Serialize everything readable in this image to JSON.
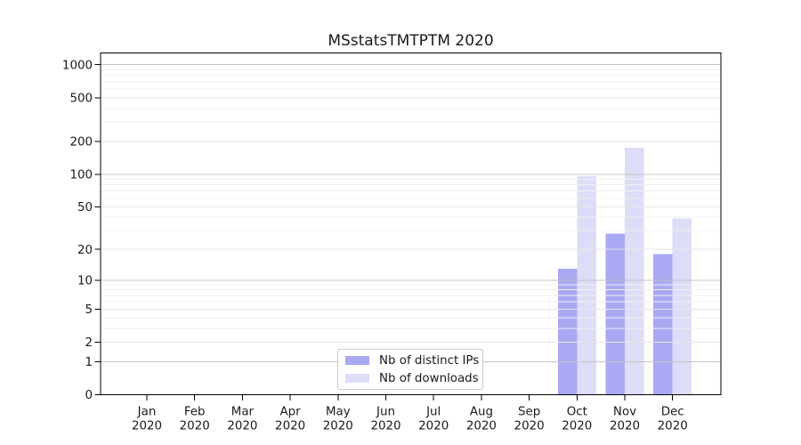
{
  "chart_data": {
    "type": "bar",
    "title": "MSstatsTMTPTM 2020",
    "categories": [
      "Jan 2020",
      "Feb 2020",
      "Mar 2020",
      "Apr 2020",
      "May 2020",
      "Jun 2020",
      "Jul 2020",
      "Aug 2020",
      "Sep 2020",
      "Oct 2020",
      "Nov 2020",
      "Dec 2020"
    ],
    "y_ticks": [
      0,
      1,
      2,
      5,
      10,
      20,
      50,
      100,
      200,
      500,
      1000
    ],
    "y_scale": "log10(1+y)",
    "grid": "on",
    "legend_position": "lower center",
    "series": [
      {
        "name": "Nb of distinct IPs",
        "color": "#a9a9f3",
        "values": [
          0,
          0,
          0,
          0,
          0,
          0,
          0,
          0,
          0,
          13,
          28,
          18
        ]
      },
      {
        "name": "Nb of downloads",
        "color": "#ddddf8",
        "values": [
          0,
          0,
          0,
          0,
          0,
          0,
          0,
          0,
          0,
          96,
          175,
          39
        ]
      }
    ]
  }
}
